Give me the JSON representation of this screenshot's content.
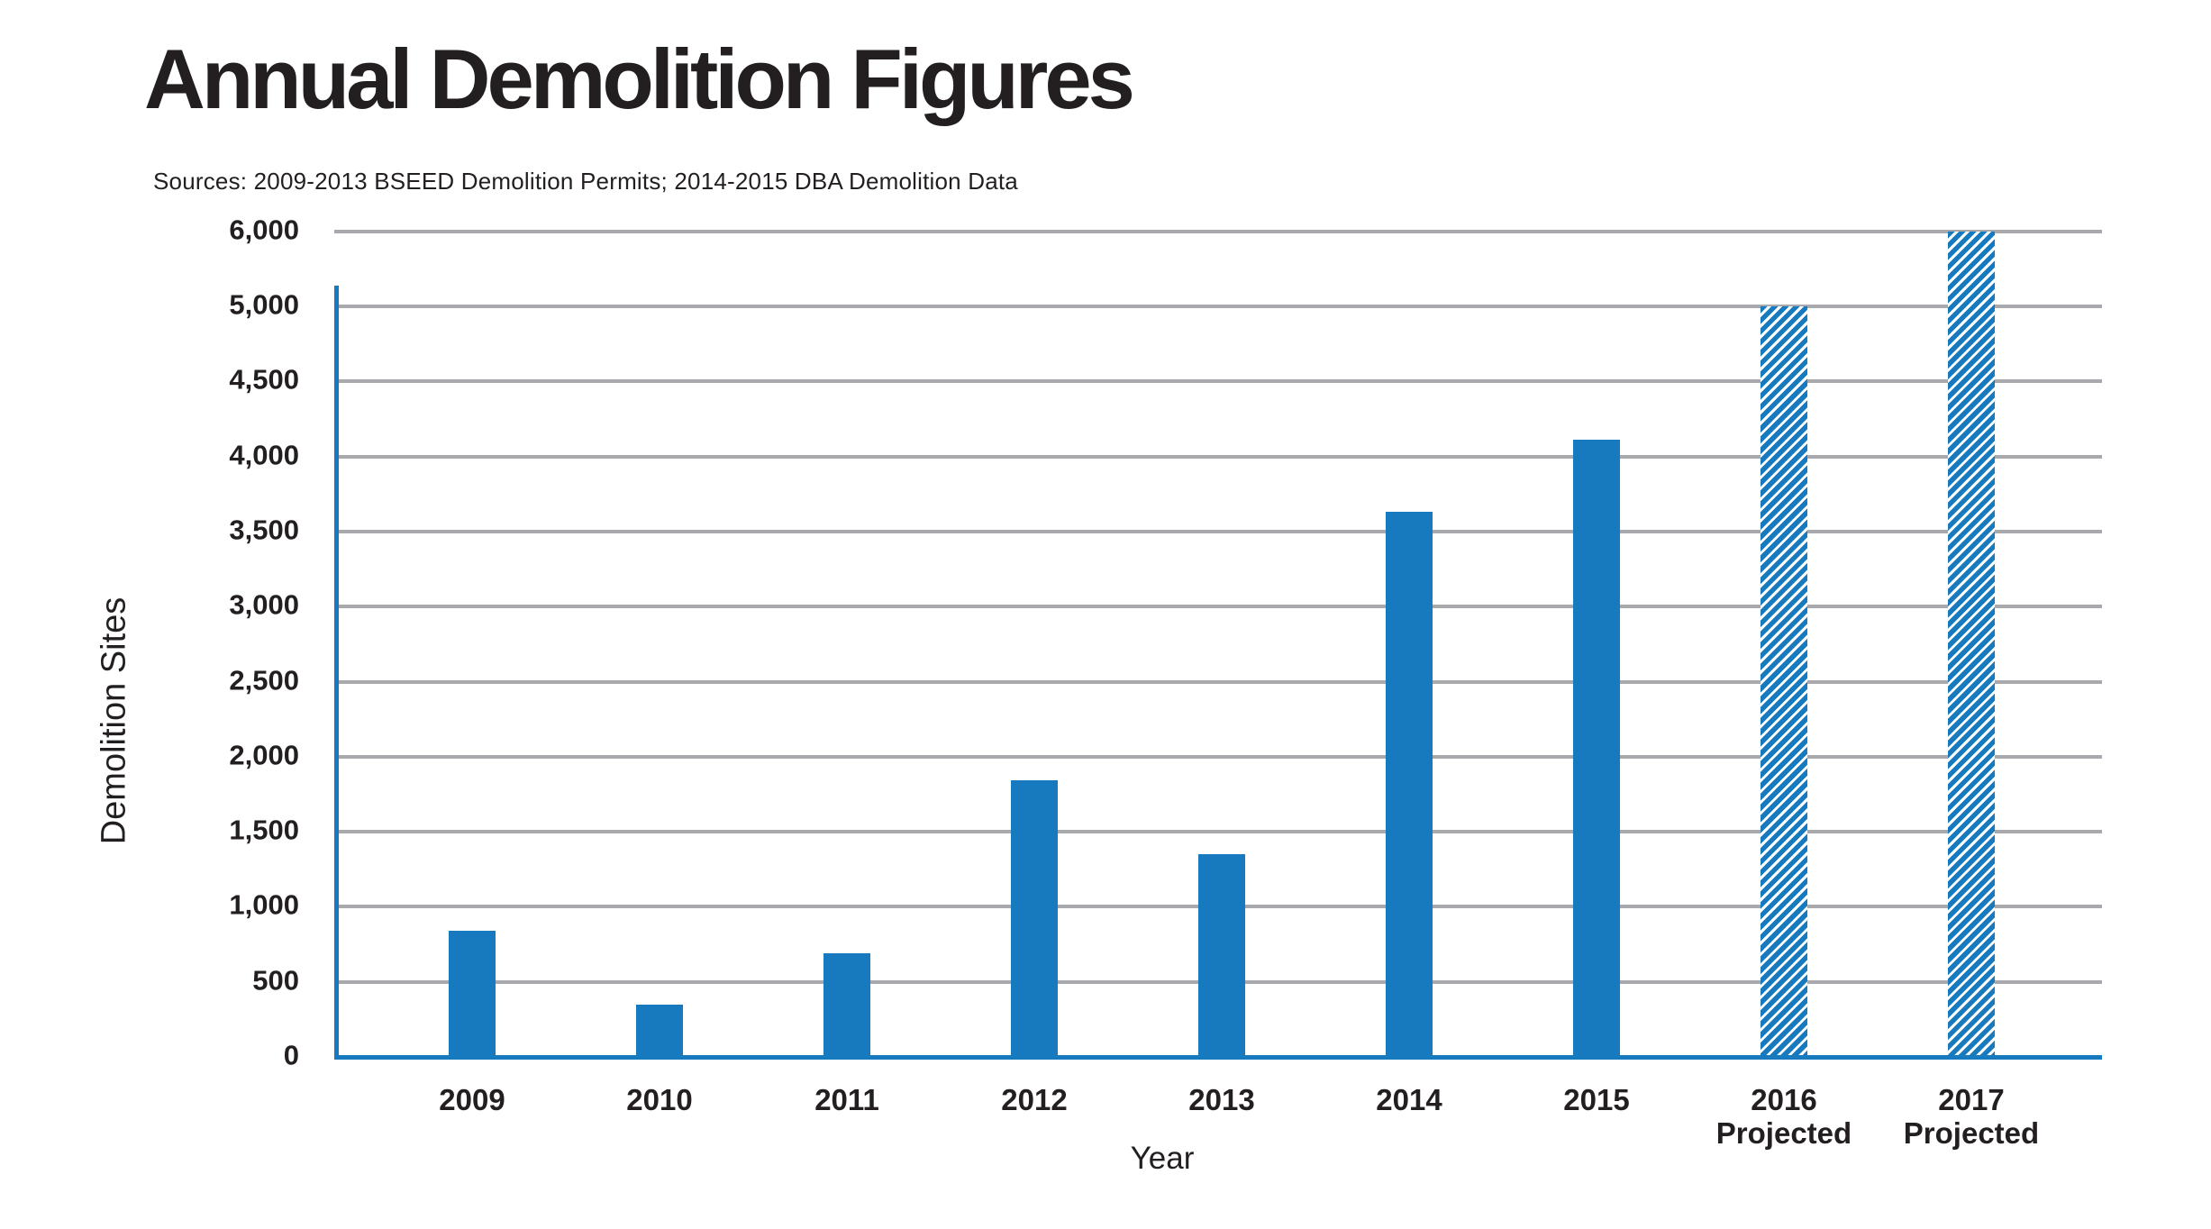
{
  "header": {
    "title": "Annual Demolition Figures",
    "source_note": "Sources: 2009-2013 BSEED Demolition Permits; 2014-2015 DBA Demolition Data"
  },
  "chart_data": {
    "type": "bar",
    "title": "Annual Demolition Figures",
    "source_note": "Sources: 2009-2013 BSEED Demolition Permits; 2014-2015 DBA Demolition Data",
    "xlabel": "Year",
    "ylabel": "Demolition Sites",
    "categories": [
      "2009",
      "2010",
      "2011",
      "2012",
      "2013",
      "2014",
      "2015",
      "2016",
      "2017"
    ],
    "category_sublabels": [
      "",
      "",
      "",
      "",
      "",
      "",
      "",
      "Projected",
      "Projected"
    ],
    "values": [
      840,
      350,
      690,
      1845,
      1350,
      3630,
      4110,
      5000,
      6000
    ],
    "projected": [
      false,
      false,
      false,
      false,
      false,
      false,
      false,
      true,
      true
    ],
    "y_ticks": [
      {
        "value": 0,
        "label": "0"
      },
      {
        "value": 500,
        "label": "500"
      },
      {
        "value": 1000,
        "label": "1,000"
      },
      {
        "value": 1500,
        "label": "1,500"
      },
      {
        "value": 2000,
        "label": "2,000"
      },
      {
        "value": 2500,
        "label": "2,500"
      },
      {
        "value": 3000,
        "label": "3,000"
      },
      {
        "value": 3500,
        "label": "3,500"
      },
      {
        "value": 4000,
        "label": "4,000"
      },
      {
        "value": 4500,
        "label": "4,500"
      },
      {
        "value": 5000,
        "label": "5,000"
      },
      {
        "value": 6000,
        "label": "6,000"
      }
    ],
    "ylim": [
      0,
      6000
    ],
    "grid": true,
    "legend": "none",
    "bar_style_note": "2016 and 2017 projected bars drawn with diagonal hatch stripes",
    "colors": {
      "bar": "#1779BE",
      "axis": "#1779BE",
      "gridline": "#A7A9AC",
      "text": "#231F20",
      "background": "#FFFFFF"
    }
  }
}
